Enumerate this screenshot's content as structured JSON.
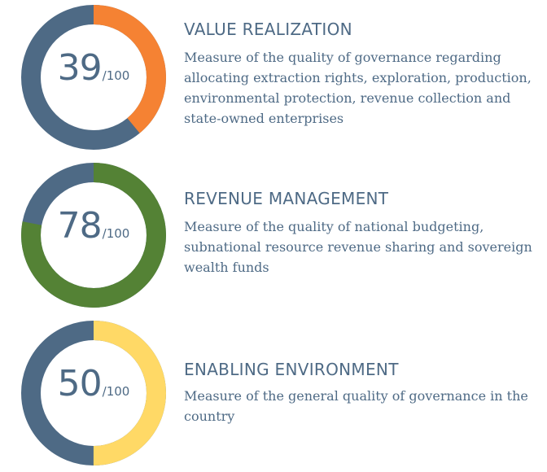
{
  "chart_data": [
    {
      "type": "pie",
      "title": "VALUE REALIZATION",
      "description": "Measure of the quality of governance regarding allocating extraction rights, exploration, production, environmental protection, revenue collection and state-owned enterprises",
      "value": 39,
      "max": 100,
      "denominator_label": "/100",
      "colors": {
        "filled": "#f58233",
        "remainder": "#4e6a85"
      }
    },
    {
      "type": "pie",
      "title": "REVENUE MANAGEMENT",
      "description": "Measure of the quality of national budgeting, subnational resource revenue sharing and sovereign wealth funds",
      "value": 78,
      "max": 100,
      "denominator_label": "/100",
      "colors": {
        "filled": "#548235",
        "remainder": "#4e6a85"
      }
    },
    {
      "type": "pie",
      "title": "ENABLING ENVIRONMENT",
      "description": "Measure of the general quality of governance in the country",
      "value": 50,
      "max": 100,
      "denominator_label": "/100",
      "colors": {
        "filled": "#ffd966",
        "remainder": "#4e6a85"
      }
    }
  ]
}
